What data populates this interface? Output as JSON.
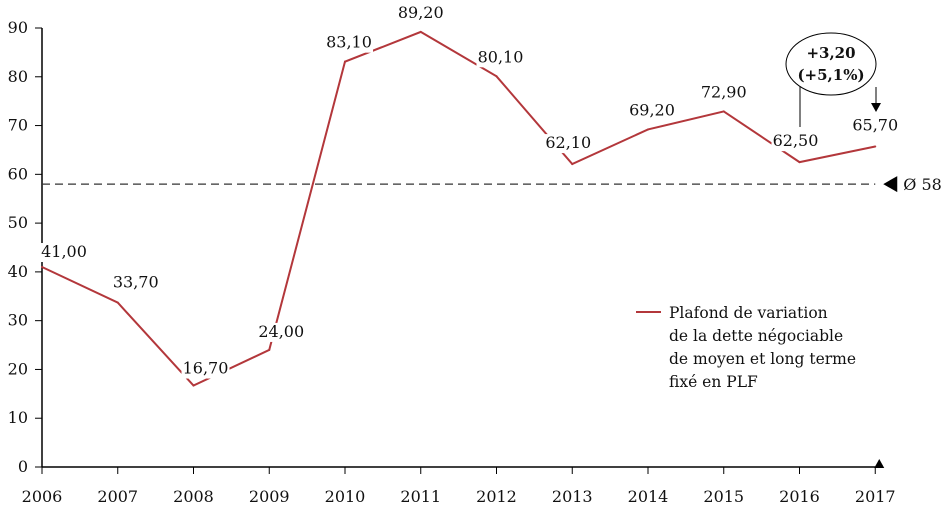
{
  "chart_data": {
    "type": "line",
    "title": "",
    "xlabel": "",
    "ylabel": "",
    "categories": [
      "2006",
      "2007",
      "2008",
      "2009",
      "2010",
      "2011",
      "2012",
      "2013",
      "2014",
      "2015",
      "2016",
      "2017"
    ],
    "series": [
      {
        "name": "Plafond de variation de la dette négociable de moyen et long terme fixé en PLF",
        "color": "#b3373b",
        "values": [
          41.0,
          33.7,
          16.7,
          24.0,
          83.1,
          89.2,
          80.1,
          62.1,
          69.2,
          72.9,
          62.5,
          65.7
        ],
        "labels": [
          "41,00",
          "33,70",
          "16,70",
          "24,00",
          "83,10",
          "89,20",
          "80,10",
          "62,10",
          "69,20",
          "72,90",
          "62,50",
          "65,70"
        ]
      }
    ],
    "ylim": [
      0,
      90
    ],
    "yticks": [
      0,
      10,
      20,
      30,
      40,
      50,
      60,
      70,
      80,
      90
    ],
    "ytick_labels": [
      "0",
      "10",
      "20",
      "30",
      "40",
      "50",
      "60",
      "70",
      "80",
      "90"
    ],
    "grid": false,
    "legend": {
      "placement": "center-right",
      "lines": [
        "Plafond de variation",
        "de la dette négociable",
        "de moyen et long terme",
        "fixé en PLF"
      ]
    },
    "average_line": {
      "value": 58,
      "label": "Ø 58",
      "style": "dashed"
    },
    "annotations": [
      {
        "type": "callout",
        "from": "2016",
        "to": "2017",
        "lines": [
          "+3,20",
          "(+5,1%)"
        ]
      }
    ]
  }
}
